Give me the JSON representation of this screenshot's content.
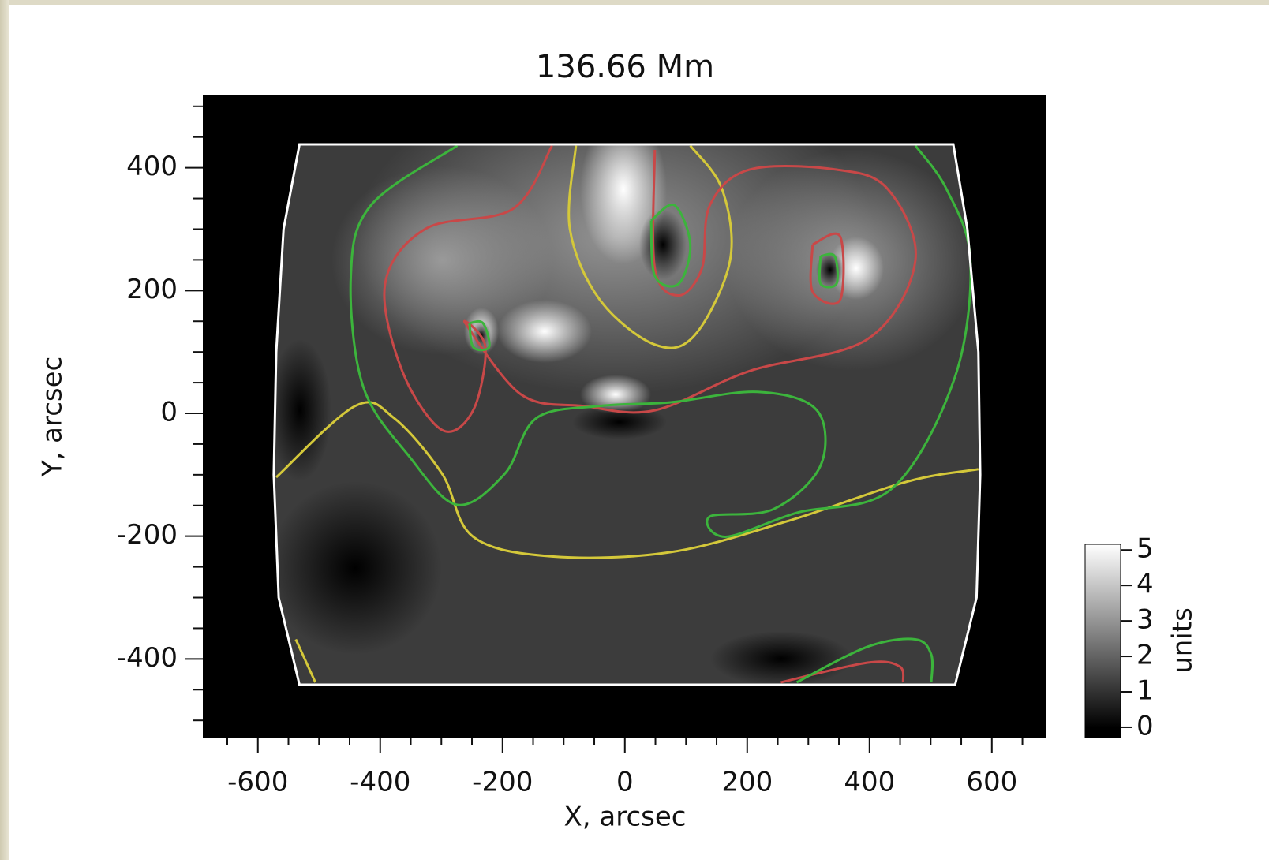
{
  "chart_data": {
    "type": "heatmap",
    "title": "136.66 Mm",
    "xlabel": "X, arcsec",
    "ylabel": "Y, arcsec",
    "xlim": [
      -690,
      688
    ],
    "ylim": [
      -528,
      519
    ],
    "xticks": [
      -600,
      -400,
      -200,
      0,
      200,
      400,
      600
    ],
    "yticks": [
      -400,
      -200,
      0,
      200,
      400
    ],
    "xminorticks": [
      -650,
      -550,
      -500,
      -450,
      -350,
      -300,
      -250,
      -150,
      -100,
      -50,
      50,
      100,
      150,
      250,
      300,
      350,
      450,
      500,
      550,
      650
    ],
    "yminorticks": [
      -500,
      -450,
      -350,
      -300,
      -250,
      -150,
      -100,
      -50,
      50,
      100,
      150,
      250,
      300,
      350,
      450,
      500
    ],
    "colorbar": {
      "label": "units",
      "clim": [
        -0.29,
        5.16
      ],
      "ticks": [
        0,
        1,
        2,
        3,
        4,
        5
      ]
    },
    "boundary": {
      "color": "#ffffff",
      "x": [
        -532,
        537,
        560,
        578,
        581,
        575,
        540,
        -532,
        -566,
        -574,
        -570,
        -558
      ],
      "y": [
        438,
        438,
        300,
        100,
        -100,
        -300,
        -442,
        -442,
        -300,
        -100,
        100,
        300
      ]
    },
    "contours": [
      {
        "color": "#d4c83a",
        "x": [
          -80,
          -90,
          -41,
          49,
          114,
          172,
          159,
          107
        ],
        "y": [
          436,
          301,
          185,
          112,
          127,
          249,
          365,
          436
        ]
      },
      {
        "color": "#d4c83a",
        "x": [
          -570,
          -441,
          -377,
          -299,
          -248,
          -119,
          75,
          268,
          462,
          578
        ],
        "y": [
          -104,
          12,
          -8,
          -98,
          -201,
          -233,
          -226,
          -175,
          -111,
          -91
        ]
      },
      {
        "color": "#d4c83a",
        "x": [
          -538,
          -506
        ],
        "y": [
          -368,
          -438
        ]
      },
      {
        "color": "#c84848",
        "x": [
          -119,
          -183,
          -325,
          -392,
          -364,
          -299,
          -248,
          -228,
          -261,
          -170,
          -67,
          49,
          204,
          397,
          475,
          430,
          346,
          204,
          139,
          126,
          88,
          49,
          49
        ],
        "y": [
          436,
          333,
          301,
          211,
          69,
          -27,
          5,
          108,
          147,
          31,
          12,
          5,
          69,
          121,
          249,
          365,
          397,
          397,
          339,
          236,
          192,
          236,
          429
        ]
      },
      {
        "color": "#c84848",
        "x": [
          307,
          307,
          352,
          352,
          307
        ],
        "y": [
          275,
          198,
          185,
          288,
          275
        ]
      },
      {
        "color": "#c84848",
        "x": [
          255,
          397,
          449,
          455
        ],
        "y": [
          -438,
          -406,
          -412,
          -438
        ]
      },
      {
        "color": "#3cb43c",
        "x": [
          -274,
          -415,
          -448,
          -428,
          -351,
          -274,
          -196,
          -145,
          -41,
          75,
          217,
          314,
          320,
          243,
          139,
          165,
          281,
          436,
          539,
          565,
          526,
          475
        ],
        "y": [
          436,
          339,
          224,
          44,
          -72,
          -149,
          -98,
          -8,
          12,
          18,
          35,
          5,
          -85,
          -156,
          -168,
          -201,
          -162,
          -123,
          57,
          249,
          365,
          436
        ]
      },
      {
        "color": "#3cb43c",
        "x": [
          -254,
          -248,
          -222,
          -232,
          -254
        ],
        "y": [
          147,
          108,
          108,
          147,
          147
        ]
      },
      {
        "color": "#3cb43c",
        "x": [
          43,
          49,
          88,
          107,
          81,
          43
        ],
        "y": [
          314,
          224,
          211,
          275,
          339,
          314
        ]
      },
      {
        "color": "#3cb43c",
        "x": [
          320,
          320,
          346,
          343,
          320
        ],
        "y": [
          256,
          211,
          211,
          256,
          256
        ]
      },
      {
        "color": "#3cb43c",
        "x": [
          281,
          397,
          475,
          501,
          501
        ],
        "y": [
          -438,
          -380,
          -368,
          -393,
          -438
        ]
      }
    ]
  }
}
